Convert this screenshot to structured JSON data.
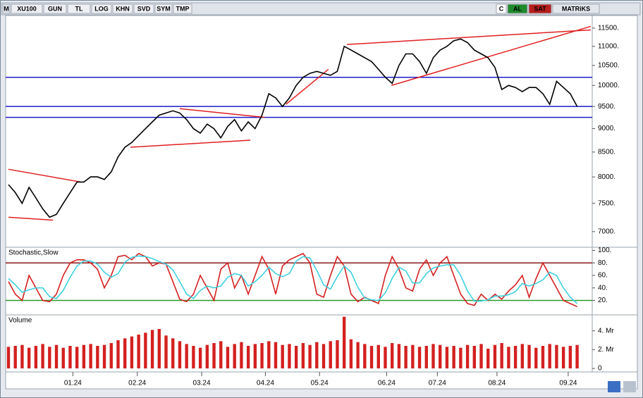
{
  "toolbar": {
    "left": [
      "M",
      "XU100",
      "GUN",
      "TL",
      "LOG",
      "KHN",
      "SVD",
      "SYM",
      "TMP"
    ],
    "right": [
      "C",
      "AL",
      "SAT",
      "MATRiKS"
    ]
  },
  "chart_data": [
    {
      "type": "line",
      "log": true,
      "x": [
        0,
        1,
        2,
        3,
        4,
        5,
        6,
        7,
        8,
        9,
        10,
        11,
        12,
        13,
        14,
        15,
        16,
        17,
        18,
        19,
        20,
        21,
        22,
        23,
        24,
        25,
        26,
        27,
        28,
        29,
        30,
        31,
        32,
        33,
        34,
        35,
        36,
        37,
        38,
        39,
        40,
        41,
        42,
        43,
        44,
        45,
        46,
        47,
        48,
        49,
        50,
        51,
        52,
        53,
        54,
        55,
        56,
        57,
        58,
        59,
        60,
        61,
        62,
        63,
        64,
        65,
        66,
        67,
        68,
        69,
        70,
        71,
        72,
        73,
        74,
        75,
        76,
        77,
        78,
        79,
        80,
        81,
        82,
        83
      ],
      "xlim": [
        0,
        85
      ],
      "ylim": [
        6750,
        11860
      ],
      "yticks": [
        {
          "value": 7000,
          "label": "7000."
        },
        {
          "value": 7500,
          "label": "7500."
        },
        {
          "value": 8000,
          "label": "8000."
        },
        {
          "value": 8500,
          "label": "8500."
        },
        {
          "value": 9000,
          "label": "9000."
        },
        {
          "value": 9500,
          "label": "9500."
        },
        {
          "value": 10000,
          "label": "10000."
        },
        {
          "value": 10500,
          "label": "10500."
        },
        {
          "value": 11000,
          "label": "11000."
        },
        {
          "value": 11500,
          "label": "11500."
        }
      ],
      "series": [
        {
          "color": "#000000",
          "values": [
            7850,
            7700,
            7500,
            7800,
            7600,
            7400,
            7250,
            7300,
            7500,
            7700,
            7900,
            7900,
            8000,
            8000,
            7950,
            8100,
            8400,
            8600,
            8700,
            8850,
            9000,
            9150,
            9300,
            9350,
            9400,
            9350,
            9200,
            9000,
            8900,
            9100,
            9000,
            8800,
            9050,
            9200,
            8950,
            9150,
            9000,
            9300,
            9800,
            9700,
            9500,
            9700,
            10000,
            10200,
            10300,
            10350,
            10300,
            10250,
            10350,
            11000,
            10900,
            10800,
            10700,
            10600,
            10400,
            10200,
            10050,
            10500,
            10800,
            10800,
            10600,
            10300,
            10700,
            10900,
            11000,
            11150,
            11200,
            11100,
            10900,
            10800,
            10700,
            10450,
            9900,
            10000,
            9950,
            9850,
            9950,
            9950,
            9800,
            9550,
            10100,
            9950,
            9800,
            9500
          ]
        }
      ],
      "hlines": [
        {
          "value": 10200,
          "color": "#1c1cc8"
        },
        {
          "value": 9500,
          "color": "#1c1cc8"
        },
        {
          "value": 9250,
          "color": "#1c1cc8"
        }
      ],
      "trendlines": [
        {
          "x": [
            0,
            10.6
          ],
          "y": [
            8150,
            7900
          ],
          "color": "#e02020"
        },
        {
          "x": [
            0,
            6.5
          ],
          "y": [
            7250,
            7200
          ],
          "color": "#e02020"
        },
        {
          "x": [
            17.8,
            35.3
          ],
          "y": [
            8600,
            8750
          ],
          "color": "#e02020"
        },
        {
          "x": [
            25,
            37.4
          ],
          "y": [
            9450,
            9250
          ],
          "color": "#e02020"
        },
        {
          "x": [
            40.5,
            46.7
          ],
          "y": [
            9550,
            10400
          ],
          "color": "#e02020"
        },
        {
          "x": [
            49.4,
            85
          ],
          "y": [
            11050,
            11450
          ],
          "color": "#e02020"
        },
        {
          "x": [
            55.9,
            85
          ],
          "y": [
            10000,
            11550
          ],
          "color": "#e02020"
        }
      ]
    },
    {
      "type": "line",
      "title": "Stochastic,Slow",
      "x": [
        0,
        1,
        2,
        3,
        4,
        5,
        6,
        7,
        8,
        9,
        10,
        11,
        12,
        13,
        14,
        15,
        16,
        17,
        18,
        19,
        20,
        21,
        22,
        23,
        24,
        25,
        26,
        27,
        28,
        29,
        30,
        31,
        32,
        33,
        34,
        35,
        36,
        37,
        38,
        39,
        40,
        41,
        42,
        43,
        44,
        45,
        46,
        47,
        48,
        49,
        50,
        51,
        52,
        53,
        54,
        55,
        56,
        57,
        58,
        59,
        60,
        61,
        62,
        63,
        64,
        65,
        66,
        67,
        68,
        69,
        70,
        71,
        72,
        73,
        74,
        75,
        76,
        77,
        78,
        79,
        80,
        81,
        82,
        83
      ],
      "xlim": [
        0,
        85
      ],
      "ylim": [
        -2,
        105
      ],
      "yticks": [
        {
          "value": 20,
          "label": "20."
        },
        {
          "value": 40,
          "label": "40."
        },
        {
          "value": 60,
          "label": "60."
        },
        {
          "value": 80,
          "label": "80."
        },
        {
          "value": 100,
          "label": "100."
        }
      ],
      "series": [
        {
          "color": "#d42020",
          "values": [
            50,
            30,
            20,
            60,
            40,
            20,
            18,
            30,
            60,
            80,
            85,
            85,
            80,
            70,
            40,
            60,
            90,
            92,
            85,
            95,
            90,
            75,
            80,
            78,
            50,
            22,
            18,
            30,
            60,
            40,
            20,
            70,
            80,
            40,
            60,
            30,
            60,
            90,
            70,
            30,
            75,
            85,
            90,
            95,
            80,
            30,
            25,
            60,
            90,
            75,
            30,
            18,
            25,
            20,
            15,
            60,
            90,
            70,
            40,
            35,
            70,
            85,
            60,
            80,
            90,
            60,
            30,
            15,
            12,
            30,
            20,
            30,
            22,
            35,
            45,
            60,
            25,
            55,
            80,
            60,
            40,
            20,
            15,
            10
          ]
        },
        {
          "color": "#3fd0e0",
          "values": [
            55,
            45,
            33,
            37,
            40,
            40,
            26,
            23,
            36,
            57,
            75,
            83,
            83,
            78,
            65,
            57,
            63,
            81,
            89,
            91,
            90,
            87,
            82,
            78,
            69,
            50,
            30,
            23,
            36,
            43,
            40,
            43,
            57,
            63,
            60,
            43,
            50,
            60,
            73,
            63,
            58,
            63,
            83,
            90,
            88,
            68,
            45,
            38,
            58,
            75,
            65,
            41,
            24,
            21,
            20,
            32,
            55,
            73,
            67,
            48,
            48,
            63,
            72,
            75,
            77,
            77,
            60,
            35,
            19,
            19,
            21,
            27,
            27,
            29,
            34,
            47,
            43,
            47,
            53,
            65,
            60,
            40,
            25,
            15
          ]
        }
      ],
      "hlines": [
        {
          "value": 80,
          "color": "#8b1a1a"
        },
        {
          "value": 20,
          "color": "#2a9a2a"
        }
      ]
    },
    {
      "type": "bar",
      "title": "Volume",
      "color": "#d42020",
      "x": [
        0,
        1,
        2,
        3,
        4,
        5,
        6,
        7,
        8,
        9,
        10,
        11,
        12,
        13,
        14,
        15,
        16,
        17,
        18,
        19,
        20,
        21,
        22,
        23,
        24,
        25,
        26,
        27,
        28,
        29,
        30,
        31,
        32,
        33,
        34,
        35,
        36,
        37,
        38,
        39,
        40,
        41,
        42,
        43,
        44,
        45,
        46,
        47,
        48,
        49,
        50,
        51,
        52,
        53,
        54,
        55,
        56,
        57,
        58,
        59,
        60,
        61,
        62,
        63,
        64,
        65,
        66,
        67,
        68,
        69,
        70,
        71,
        72,
        73,
        74,
        75,
        76,
        77,
        78,
        79,
        80,
        81,
        82,
        83
      ],
      "values": [
        2.3,
        2.4,
        2.5,
        2.2,
        2.4,
        2.6,
        2.3,
        2.5,
        2.2,
        2.4,
        2.3,
        2.5,
        2.6,
        2.4,
        2.5,
        2.7,
        3.0,
        3.2,
        3.4,
        3.6,
        3.8,
        4.1,
        4.2,
        3.5,
        3.2,
        2.9,
        2.6,
        2.4,
        2.2,
        2.5,
        2.7,
        2.9,
        2.3,
        2.6,
        2.8,
        2.4,
        2.6,
        2.7,
        2.9,
        2.8,
        2.5,
        2.6,
        2.4,
        2.7,
        2.5,
        2.8,
        2.6,
        2.9,
        3.0,
        5.5,
        3.1,
        2.8,
        2.6,
        2.4,
        2.5,
        2.3,
        2.7,
        2.6,
        2.4,
        2.5,
        2.3,
        2.4,
        2.6,
        2.5,
        2.3,
        2.4,
        2.2,
        2.5,
        2.4,
        2.6,
        2.1,
        2.5,
        2.7,
        2.3,
        2.4,
        2.6,
        2.5,
        2.2,
        2.4,
        2.6,
        2.5,
        2.3,
        2.4,
        2.5
      ],
      "xlim": [
        0,
        85
      ],
      "ylim": [
        0,
        5.7
      ],
      "yticks": [
        0,
        {
          "value": 2,
          "label": "2. Mr"
        },
        {
          "value": 4,
          "label": "4. Mr"
        }
      ],
      "xticks": [
        {
          "value": 9.4,
          "label": "01.24"
        },
        {
          "value": 18.8,
          "label": "02.24"
        },
        {
          "value": 28.2,
          "label": "03.24"
        },
        {
          "value": 37.5,
          "label": "04.24"
        },
        {
          "value": 45.4,
          "label": "05.24"
        },
        {
          "value": 55.2,
          "label": "06.24"
        },
        {
          "value": 62.6,
          "label": "07.24"
        },
        {
          "value": 71.3,
          "label": "08.24"
        },
        {
          "value": 81.7,
          "label": "09.24"
        }
      ]
    }
  ]
}
